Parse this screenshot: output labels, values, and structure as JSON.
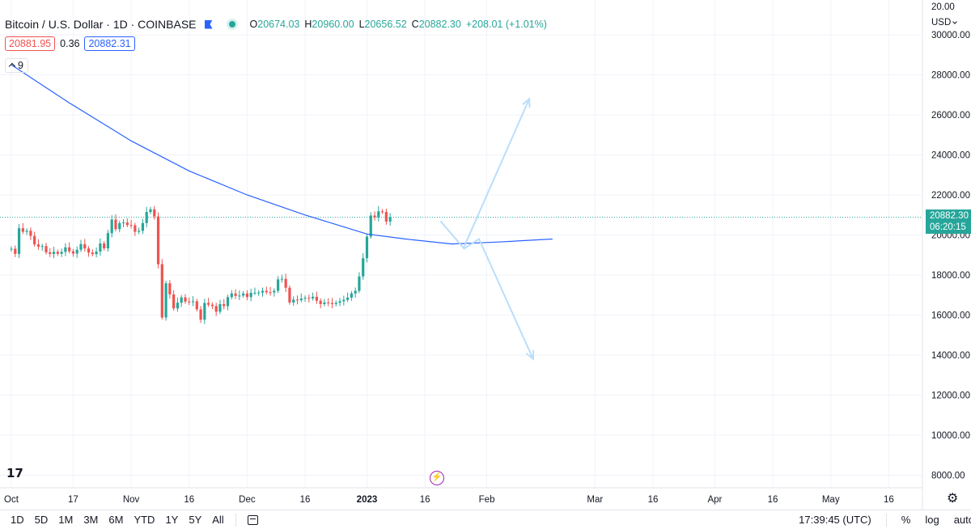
{
  "header": {
    "symbol": "Bitcoin / U.S. Dollar · 1D · COINBASE",
    "ohlc": {
      "o_label": "O",
      "o": "20674.03",
      "h_label": "H",
      "h": "20960.00",
      "l_label": "L",
      "l": "20656.52",
      "c_label": "C",
      "c": "20882.30",
      "change": "+208.01 (+1.01%)"
    },
    "bid": "20881.95",
    "spread": "0.36",
    "ask": "20882.31",
    "indicator_count": "9"
  },
  "price_axis": {
    "currency": "USD",
    "top_label": "20.00",
    "last_price": "20882.30",
    "countdown": "06:20:15"
  },
  "bottom_bar": {
    "ranges": [
      "1D",
      "5D",
      "1M",
      "3M",
      "6M",
      "YTD",
      "1Y",
      "5Y",
      "All"
    ],
    "time": "17:39:45 (UTC)",
    "percent": "%",
    "log": "log",
    "auto": "auto"
  },
  "chart_data": {
    "type": "candlestick",
    "y_ticks": [
      30000,
      28000,
      26000,
      24000,
      22000,
      20000,
      18000,
      16000,
      14000,
      12000,
      10000,
      8000
    ],
    "y_tick_labels": [
      "30000.00",
      "28000.00",
      "26000.00",
      "24000.00",
      "22000.00",
      "20000.00",
      "18000.00",
      "16000.00",
      "14000.00",
      "12000.00",
      "10000.00",
      "8000.00"
    ],
    "ylim": [
      7000,
      32000
    ],
    "x_range": [
      "2022-10-01",
      "2023-05-25"
    ],
    "x_ticks": [
      {
        "date": "2022-10-01",
        "label": "Oct"
      },
      {
        "date": "2022-10-17",
        "label": "17"
      },
      {
        "date": "2022-11-01",
        "label": "Nov"
      },
      {
        "date": "2022-11-16",
        "label": "16"
      },
      {
        "date": "2022-12-01",
        "label": "Dec"
      },
      {
        "date": "2022-12-16",
        "label": "16"
      },
      {
        "date": "2023-01-01",
        "label": "2023"
      },
      {
        "date": "2023-01-16",
        "label": "16"
      },
      {
        "date": "2023-02-01",
        "label": "Feb"
      },
      {
        "date": "2023-03-01",
        "label": "Mar"
      },
      {
        "date": "2023-03-16",
        "label": "16"
      },
      {
        "date": "2023-04-01",
        "label": "Apr"
      },
      {
        "date": "2023-04-16",
        "label": "16"
      },
      {
        "date": "2023-05-01",
        "label": "May"
      },
      {
        "date": "2023-05-16",
        "label": "16"
      }
    ],
    "grid": true,
    "close_series": [
      19312,
      19053,
      20336,
      20160,
      20213,
      19955,
      19529,
      19417,
      19446,
      19133,
      19053,
      19161,
      19060,
      19156,
      19382,
      19185,
      19070,
      19262,
      19546,
      19328,
      19121,
      19041,
      19173,
      19575,
      19331,
      20090,
      20772,
      20292,
      20594,
      20624,
      20496,
      20483,
      20159,
      20207,
      20596,
      21147,
      21282,
      20926,
      18541,
      15880,
      17586,
      17034,
      16331,
      16616,
      16882,
      16673,
      16661,
      16688,
      16286,
      15768,
      16604,
      16516,
      16450,
      16165,
      16548,
      16445,
      16895,
      17079,
      16957,
      16974,
      17076,
      16898,
      17109,
      17115,
      17125,
      17210,
      17140,
      17130,
      17210,
      17781,
      17810,
      17365,
      16630,
      16771,
      16744,
      16825,
      16860,
      16835,
      16913,
      16715,
      16548,
      16630,
      16600,
      16550,
      16610,
      16690,
      16760,
      16870,
      17080,
      17210,
      17930,
      18840,
      19920,
      20970,
      20880,
      21180,
      21150,
      20670,
      20882
    ],
    "ma_series": {
      "length": 9,
      "points": [
        {
          "date": "2022-10-01",
          "value": 28500
        },
        {
          "date": "2022-10-16",
          "value": 26600
        },
        {
          "date": "2022-11-01",
          "value": 24700
        },
        {
          "date": "2022-11-16",
          "value": 23200
        },
        {
          "date": "2022-12-01",
          "value": 22000
        },
        {
          "date": "2022-12-16",
          "value": 21000
        },
        {
          "date": "2023-01-01",
          "value": 20050
        },
        {
          "date": "2023-01-11",
          "value": 19800
        },
        {
          "date": "2023-01-23",
          "value": 19550
        },
        {
          "date": "2023-02-04",
          "value": 19650
        },
        {
          "date": "2023-02-18",
          "value": 19800
        }
      ]
    },
    "projection_arrows": [
      {
        "path": [
          {
            "date": "2023-01-20",
            "value": 20700
          },
          {
            "date": "2023-01-26",
            "value": 19350
          },
          {
            "date": "2023-02-12",
            "value": 26800
          }
        ]
      },
      {
        "path": [
          {
            "date": "2023-01-26",
            "value": 19300
          },
          {
            "date": "2023-01-30",
            "value": 19800
          },
          {
            "date": "2023-02-13",
            "value": 13800
          }
        ]
      }
    ],
    "colors": {
      "up": "#26a69a",
      "down": "#ef5350",
      "ma": "#2962ff",
      "arrow": "#bbdefb",
      "grid": "#f0f3fa"
    }
  }
}
